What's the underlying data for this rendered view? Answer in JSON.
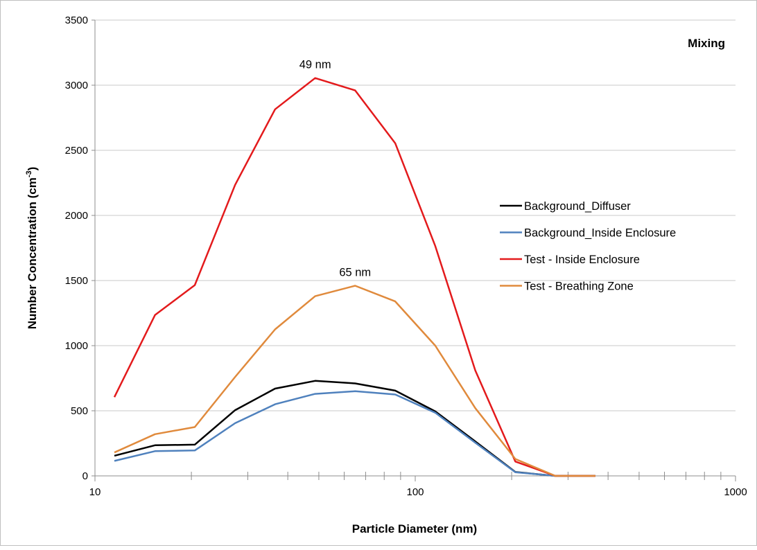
{
  "chart_data": {
    "type": "line",
    "title": "Mixing",
    "xlabel": "Particle Diameter (nm)",
    "ylabel_main": "Number Concentration (cm",
    "ylabel_sup": "-3",
    "ylabel_close": ")",
    "xscale": "log",
    "xlim": [
      10,
      1000
    ],
    "ylim": [
      0,
      3500
    ],
    "grid": "horizontal",
    "legend_position": "right",
    "x_tick_labels": [
      "10",
      "100",
      "1000"
    ],
    "y_tick_labels": [
      "0",
      "500",
      "1000",
      "1500",
      "2000",
      "2500",
      "3000",
      "3500"
    ],
    "x": [
      11.5,
      15.4,
      20.5,
      27.4,
      36.5,
      48.7,
      64.9,
      86.6,
      115.5,
      154,
      205.4,
      273.8,
      365.2
    ],
    "series": [
      {
        "name": "Background_Diffuser",
        "color": "#000000",
        "values": [
          155,
          235,
          240,
          505,
          670,
          730,
          710,
          655,
          495,
          265,
          30,
          0,
          0
        ]
      },
      {
        "name": "Background_Inside Enclosure",
        "color": "#4f81bd",
        "values": [
          115,
          190,
          195,
          405,
          550,
          630,
          650,
          625,
          485,
          255,
          28,
          0,
          0
        ]
      },
      {
        "name": "Test - Inside Enclosure",
        "color": "#e31a1c",
        "values": [
          605,
          1235,
          1465,
          2235,
          2815,
          3055,
          2960,
          2555,
          1765,
          810,
          110,
          0,
          0
        ]
      },
      {
        "name": "Test - Breathing Zone",
        "color": "#e08a3c",
        "values": [
          180,
          320,
          375,
          760,
          1125,
          1380,
          1460,
          1340,
          1000,
          520,
          130,
          0,
          0
        ]
      }
    ],
    "annotations": [
      {
        "text": "49 nm",
        "x": 48.7,
        "y": 3055
      },
      {
        "text": "65 nm",
        "x": 64.9,
        "y": 1460
      }
    ]
  }
}
